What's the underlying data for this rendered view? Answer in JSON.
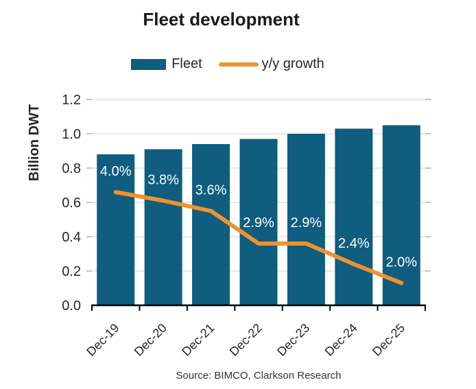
{
  "title": "Fleet development",
  "legend": {
    "fleet_label": "Fleet",
    "growth_label": "y/y growth"
  },
  "source": "Source: BIMCO, Clarkson Research",
  "chart_data": {
    "type": "bar+line combo",
    "title": "Fleet development",
    "ylabel": "Billion DWT",
    "categories": [
      "Dec-19",
      "Dec-20",
      "Dec-21",
      "Dec-22",
      "Dec-23",
      "Dec-24",
      "Dec-25"
    ],
    "series": [
      {
        "name": "Fleet",
        "type": "bar",
        "unit": "billion DWT",
        "values": [
          0.88,
          0.91,
          0.94,
          0.97,
          1.0,
          1.03,
          1.05
        ],
        "color": "#0F5D7F"
      },
      {
        "name": "y/y growth",
        "type": "line",
        "unit": "%",
        "values": [
          4.0,
          3.8,
          3.6,
          2.9,
          2.9,
          2.4,
          2.0
        ],
        "labels": [
          "4.0%",
          "3.8%",
          "3.6%",
          "2.9%",
          "2.9%",
          "2.4%",
          "2.0%"
        ],
        "color": "#F0922F"
      }
    ],
    "yticks": [
      0,
      0.2,
      0.4,
      0.6,
      0.8,
      1.0,
      1.2
    ],
    "ylim": [
      0,
      1.2
    ],
    "grid": true,
    "legend_position": "top",
    "source": "Source: BIMCO, Clarkson Research",
    "line_left_axis_positions": [
      0.66,
      0.61,
      0.55,
      0.36,
      0.36,
      0.24,
      0.13
    ],
    "colors": {
      "bar": "#0F5D7F",
      "line": "#F0922F",
      "grid": "#D9D9D9",
      "tick_stub": "#A6A6A6",
      "axis": "#000000",
      "text": "#262626",
      "data_label": "#FFFFFF"
    }
  }
}
